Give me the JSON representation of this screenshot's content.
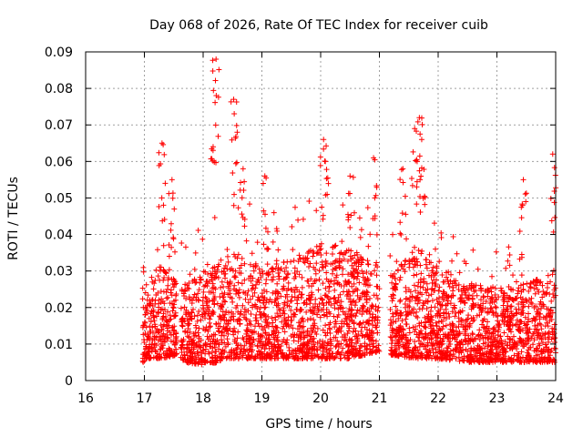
{
  "chart_data": {
    "type": "scatter",
    "title": "Day 068 of 2026, Rate Of TEC Index for receiver cuib",
    "xlabel": "GPS time / hours",
    "ylabel": "ROTI / TECUs",
    "xlim": [
      16,
      24
    ],
    "ylim": [
      0,
      0.09
    ],
    "x_ticks": [
      16,
      17,
      18,
      19,
      20,
      21,
      22,
      23,
      24
    ],
    "y_ticks": [
      0,
      0.01,
      0.02,
      0.03,
      0.04,
      0.05,
      0.06,
      0.07,
      0.08,
      0.09
    ],
    "x_tick_labels": [
      "16",
      "17",
      "18",
      "19",
      "20",
      "21",
      "22",
      "23",
      "24"
    ],
    "y_tick_labels": [
      "0",
      "0.01",
      "0.02",
      "0.03",
      "0.04",
      "0.05",
      "0.06",
      "0.07",
      "0.08",
      "0.09"
    ],
    "grid": true,
    "marker": "+",
    "series": [
      {
        "name": "cuib ROTI",
        "color": "#ff0000",
        "data_gaps_hours": [
          [
            17.55,
            17.62
          ],
          [
            21.0,
            21.18
          ]
        ],
        "envelope": [
          {
            "x": 17.0,
            "low": 0.006,
            "high": 0.032
          },
          {
            "x": 17.3,
            "low": 0.006,
            "high": 0.042
          },
          {
            "x": 17.55,
            "low": 0.007,
            "high": 0.035
          },
          {
            "x": 17.7,
            "low": 0.005,
            "high": 0.034
          },
          {
            "x": 18.0,
            "low": 0.004,
            "high": 0.038
          },
          {
            "x": 18.5,
            "low": 0.006,
            "high": 0.045
          },
          {
            "x": 19.0,
            "low": 0.006,
            "high": 0.042
          },
          {
            "x": 19.5,
            "low": 0.006,
            "high": 0.042
          },
          {
            "x": 20.0,
            "low": 0.006,
            "high": 0.048
          },
          {
            "x": 20.5,
            "low": 0.006,
            "high": 0.046
          },
          {
            "x": 21.0,
            "low": 0.008,
            "high": 0.04
          },
          {
            "x": 21.2,
            "low": 0.007,
            "high": 0.036
          },
          {
            "x": 21.6,
            "low": 0.006,
            "high": 0.048
          },
          {
            "x": 22.0,
            "low": 0.006,
            "high": 0.04
          },
          {
            "x": 22.5,
            "low": 0.005,
            "high": 0.034
          },
          {
            "x": 23.0,
            "low": 0.005,
            "high": 0.032
          },
          {
            "x": 23.5,
            "low": 0.005,
            "high": 0.034
          },
          {
            "x": 24.0,
            "low": 0.005,
            "high": 0.04
          }
        ],
        "peaks": [
          {
            "x": 17.3,
            "y": 0.065
          },
          {
            "x": 17.47,
            "y": 0.055
          },
          {
            "x": 18.17,
            "y": 0.064
          },
          {
            "x": 18.22,
            "y": 0.088
          },
          {
            "x": 18.52,
            "y": 0.077
          },
          {
            "x": 18.58,
            "y": 0.068
          },
          {
            "x": 18.68,
            "y": 0.058
          },
          {
            "x": 19.05,
            "y": 0.056
          },
          {
            "x": 20.05,
            "y": 0.066
          },
          {
            "x": 20.08,
            "y": 0.06
          },
          {
            "x": 20.5,
            "y": 0.056
          },
          {
            "x": 20.9,
            "y": 0.061
          },
          {
            "x": 21.4,
            "y": 0.058
          },
          {
            "x": 21.6,
            "y": 0.069
          },
          {
            "x": 21.68,
            "y": 0.072
          },
          {
            "x": 21.72,
            "y": 0.066
          },
          {
            "x": 23.45,
            "y": 0.055
          },
          {
            "x": 23.95,
            "y": 0.062
          }
        ]
      }
    ]
  }
}
